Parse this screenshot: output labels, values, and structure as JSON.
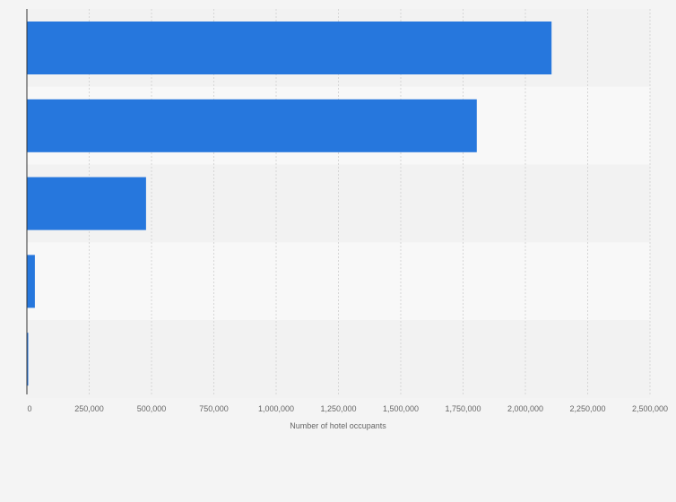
{
  "chart_data": {
    "type": "bar",
    "orientation": "horizontal",
    "categories": [
      "",
      "",
      "",
      "",
      ""
    ],
    "values": [
      2105000,
      1805000,
      478000,
      32000,
      4000
    ],
    "xlabel": "Number of hotel occupants",
    "ylabel": "",
    "xlim": [
      0,
      2500000
    ],
    "xticks": [
      0,
      250000,
      500000,
      750000,
      1000000,
      1250000,
      1500000,
      1750000,
      2000000,
      2250000,
      2500000
    ],
    "xtick_labels": [
      "0",
      "250,000",
      "500,000",
      "750,000",
      "1,000,000",
      "1,250,000",
      "1,500,000",
      "1,750,000",
      "2,000,000",
      "2,250,000",
      "2,500,000"
    ],
    "grid": "vertical dashed",
    "bar_color": "#2677dd",
    "band_colors": [
      "#f2f2f2",
      "#f8f8f8"
    ]
  }
}
